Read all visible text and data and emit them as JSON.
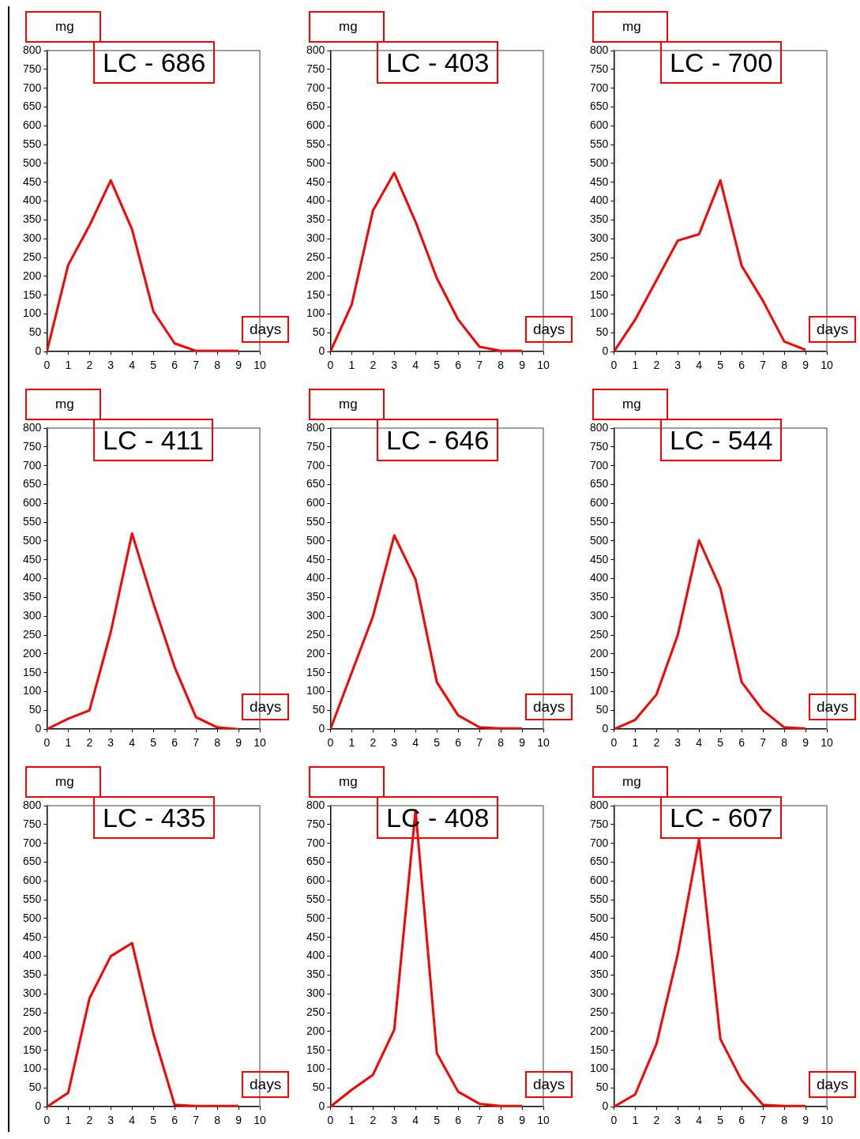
{
  "chart_data": [
    {
      "type": "line",
      "title": "LC - 686",
      "xlabel": "days",
      "ylabel": "mg",
      "x": [
        0,
        1,
        2,
        3,
        4,
        5,
        6,
        7,
        8,
        9
      ],
      "series": [
        {
          "color": "#ff0000",
          "values": [
            0,
            230,
            335,
            455,
            325,
            107,
            22,
            2,
            2,
            2
          ]
        }
      ],
      "xlim": [
        0,
        10
      ],
      "xticks": [
        0,
        1,
        2,
        3,
        4,
        5,
        6,
        7,
        8,
        9,
        10
      ],
      "ylim": [
        0,
        800
      ],
      "yticks": [
        0,
        50,
        100,
        150,
        200,
        250,
        300,
        350,
        400,
        450,
        500,
        550,
        600,
        650,
        700,
        750,
        800
      ],
      "grid": false,
      "marker": "none",
      "line_style": "solid"
    },
    {
      "type": "line",
      "title": "LC - 403",
      "xlabel": "days",
      "ylabel": "mg",
      "x": [
        0,
        1,
        2,
        3,
        4,
        5,
        6,
        7,
        8,
        9
      ],
      "series": [
        {
          "color": "#ff0000",
          "values": [
            0,
            125,
            375,
            475,
            345,
            195,
            85,
            13,
            2,
            2
          ]
        }
      ],
      "xlim": [
        0,
        10
      ],
      "xticks": [
        0,
        1,
        2,
        3,
        4,
        5,
        6,
        7,
        8,
        9,
        10
      ],
      "ylim": [
        0,
        800
      ],
      "yticks": [
        0,
        50,
        100,
        150,
        200,
        250,
        300,
        350,
        400,
        450,
        500,
        550,
        600,
        650,
        700,
        750,
        800
      ],
      "grid": false,
      "marker": "none",
      "line_style": "solid"
    },
    {
      "type": "line",
      "title": "LC - 700",
      "xlabel": "days",
      "ylabel": "mg",
      "x": [
        0,
        1,
        2,
        3,
        4,
        5,
        6,
        7,
        8,
        9
      ],
      "series": [
        {
          "color": "#ff0000",
          "values": [
            0,
            85,
            190,
            295,
            312,
            455,
            228,
            135,
            27,
            5
          ]
        }
      ],
      "xlim": [
        0,
        10
      ],
      "xticks": [
        0,
        1,
        2,
        3,
        4,
        5,
        6,
        7,
        8,
        9,
        10
      ],
      "ylim": [
        0,
        800
      ],
      "yticks": [
        0,
        50,
        100,
        150,
        200,
        250,
        300,
        350,
        400,
        450,
        500,
        550,
        600,
        650,
        700,
        750,
        800
      ],
      "grid": false,
      "marker": "none",
      "line_style": "solid"
    },
    {
      "type": "line",
      "title": "LC - 411",
      "xlabel": "days",
      "ylabel": "mg",
      "x": [
        0,
        1,
        2,
        3,
        4,
        5,
        6,
        7,
        8,
        9
      ],
      "series": [
        {
          "color": "#ff0000",
          "values": [
            0,
            28,
            50,
            258,
            520,
            335,
            165,
            32,
            5,
            0
          ]
        }
      ],
      "xlim": [
        0,
        10
      ],
      "xticks": [
        0,
        1,
        2,
        3,
        4,
        5,
        6,
        7,
        8,
        9,
        10
      ],
      "ylim": [
        0,
        800
      ],
      "yticks": [
        0,
        50,
        100,
        150,
        200,
        250,
        300,
        350,
        400,
        450,
        500,
        550,
        600,
        650,
        700,
        750,
        800
      ],
      "grid": false,
      "marker": "none",
      "line_style": "solid"
    },
    {
      "type": "line",
      "title": "LC - 646",
      "xlabel": "days",
      "ylabel": "mg",
      "x": [
        0,
        1,
        2,
        3,
        4,
        5,
        6,
        7,
        8,
        9
      ],
      "series": [
        {
          "color": "#ff0000",
          "values": [
            0,
            150,
            300,
            515,
            398,
            125,
            37,
            5,
            2,
            2
          ]
        }
      ],
      "xlim": [
        0,
        10
      ],
      "xticks": [
        0,
        1,
        2,
        3,
        4,
        5,
        6,
        7,
        8,
        9,
        10
      ],
      "ylim": [
        0,
        800
      ],
      "yticks": [
        0,
        50,
        100,
        150,
        200,
        250,
        300,
        350,
        400,
        450,
        500,
        550,
        600,
        650,
        700,
        750,
        800
      ],
      "grid": false,
      "marker": "none",
      "line_style": "solid"
    },
    {
      "type": "line",
      "title": "LC - 544",
      "xlabel": "days",
      "ylabel": "mg",
      "x": [
        0,
        1,
        2,
        3,
        4,
        5,
        6,
        7,
        8,
        9
      ],
      "series": [
        {
          "color": "#ff0000",
          "values": [
            0,
            25,
            92,
            250,
            502,
            375,
            125,
            50,
            5,
            2
          ]
        }
      ],
      "xlim": [
        0,
        10
      ],
      "xticks": [
        0,
        1,
        2,
        3,
        4,
        5,
        6,
        7,
        8,
        9,
        10
      ],
      "ylim": [
        0,
        800
      ],
      "yticks": [
        0,
        50,
        100,
        150,
        200,
        250,
        300,
        350,
        400,
        450,
        500,
        550,
        600,
        650,
        700,
        750,
        800
      ],
      "grid": false,
      "marker": "none",
      "line_style": "solid"
    },
    {
      "type": "line",
      "title": "LC - 435",
      "xlabel": "days",
      "ylabel": "mg",
      "x": [
        0,
        1,
        2,
        3,
        4,
        5,
        6,
        7,
        8,
        9
      ],
      "series": [
        {
          "color": "#ff0000",
          "values": [
            0,
            37,
            288,
            400,
            435,
            195,
            5,
            2,
            2,
            2
          ]
        }
      ],
      "xlim": [
        0,
        10
      ],
      "xticks": [
        0,
        1,
        2,
        3,
        4,
        5,
        6,
        7,
        8,
        9,
        10
      ],
      "ylim": [
        0,
        800
      ],
      "yticks": [
        0,
        50,
        100,
        150,
        200,
        250,
        300,
        350,
        400,
        450,
        500,
        550,
        600,
        650,
        700,
        750,
        800
      ],
      "grid": false,
      "marker": "none",
      "line_style": "solid"
    },
    {
      "type": "line",
      "title": "LC - 408",
      "xlabel": "days",
      "ylabel": "mg",
      "x": [
        0,
        1,
        2,
        3,
        4,
        5,
        6,
        7,
        8,
        9
      ],
      "series": [
        {
          "color": "#ff0000",
          "values": [
            0,
            45,
            85,
            205,
            788,
            142,
            40,
            8,
            2,
            2
          ]
        }
      ],
      "xlim": [
        0,
        10
      ],
      "xticks": [
        0,
        1,
        2,
        3,
        4,
        5,
        6,
        7,
        8,
        9,
        10
      ],
      "ylim": [
        0,
        800
      ],
      "yticks": [
        0,
        50,
        100,
        150,
        200,
        250,
        300,
        350,
        400,
        450,
        500,
        550,
        600,
        650,
        700,
        750,
        800
      ],
      "grid": false,
      "marker": "none",
      "line_style": "solid"
    },
    {
      "type": "line",
      "title": "LC - 607",
      "xlabel": "days",
      "ylabel": "mg",
      "x": [
        0,
        1,
        2,
        3,
        4,
        5,
        6,
        7,
        8,
        9
      ],
      "series": [
        {
          "color": "#ff0000",
          "values": [
            0,
            33,
            167,
            405,
            710,
            180,
            70,
            5,
            2,
            2
          ]
        }
      ],
      "xlim": [
        0,
        10
      ],
      "xticks": [
        0,
        1,
        2,
        3,
        4,
        5,
        6,
        7,
        8,
        9,
        10
      ],
      "ylim": [
        0,
        800
      ],
      "yticks": [
        0,
        50,
        100,
        150,
        200,
        250,
        300,
        350,
        400,
        450,
        500,
        550,
        600,
        650,
        700,
        750,
        800
      ],
      "grid": false,
      "marker": "none",
      "line_style": "solid"
    }
  ]
}
